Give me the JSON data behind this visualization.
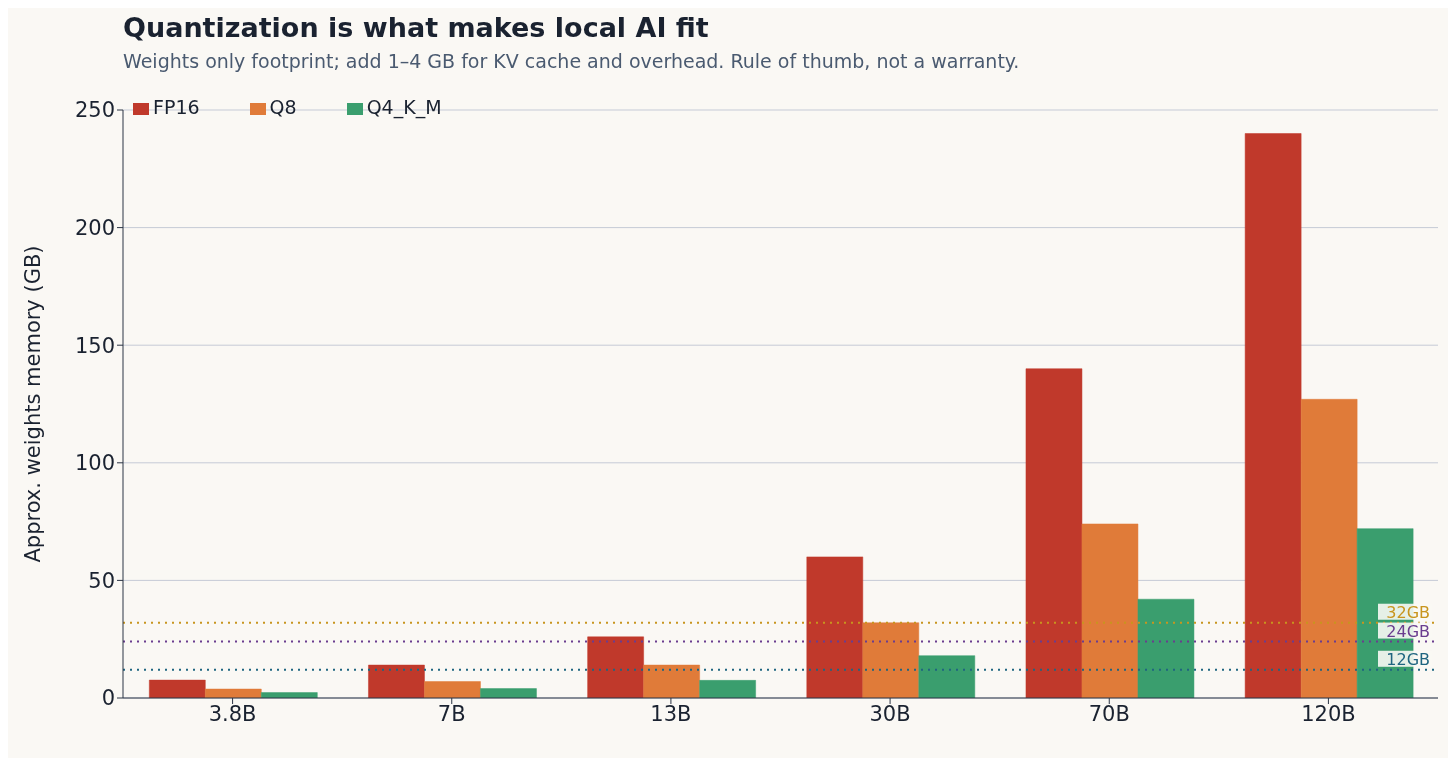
{
  "chart_data": {
    "type": "bar",
    "title": "Quantization is what makes local AI fit",
    "subtitle": "Weights only footprint; add 1–4 GB for KV cache and overhead. Rule of thumb, not a warranty.",
    "ylabel": "Approx. weights memory (GB)",
    "categories": [
      "3.8B",
      "7B",
      "13B",
      "30B",
      "70B",
      "120B"
    ],
    "series": [
      {
        "name": "FP16",
        "color": "#c0392b",
        "values": [
          7.6,
          14,
          26,
          60,
          140,
          240
        ]
      },
      {
        "name": "Q8",
        "color": "#e07b39",
        "values": [
          3.8,
          7,
          14,
          32,
          74,
          127
        ]
      },
      {
        "name": "Q4_K_M",
        "color": "#3a9e6e",
        "values": [
          2.3,
          4,
          7.5,
          18,
          42,
          72
        ]
      }
    ],
    "ylim": [
      0,
      250
    ],
    "yticks": [
      0,
      50,
      100,
      150,
      200,
      250
    ],
    "grid": "y",
    "legend": "top left",
    "ref_lines": [
      {
        "axis": "y",
        "value": 32,
        "label": "32GB",
        "color": "#c8951e",
        "line_style": "dotted"
      },
      {
        "axis": "y",
        "value": 24,
        "label": "24GB",
        "color": "#6a3d8f",
        "line_style": "dotted"
      },
      {
        "axis": "y",
        "value": 12,
        "label": "12GB",
        "color": "#1f6580",
        "line_style": "dotted"
      }
    ]
  }
}
